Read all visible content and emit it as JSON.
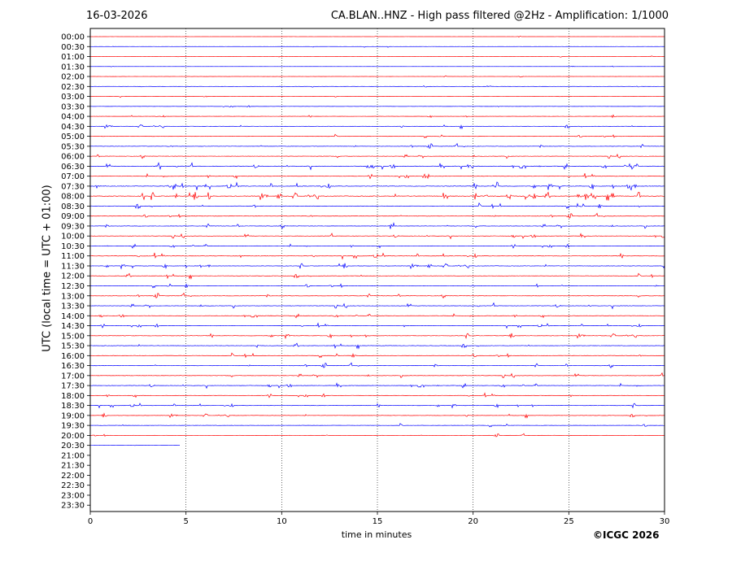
{
  "header": {
    "date": "16-03-2026",
    "title": "CA.BLAN..HNZ - High pass filtered @2Hz - Amplification: 1/1000"
  },
  "footer": {
    "copyright": "©ICGC 2026"
  },
  "chart_data": {
    "type": "line",
    "xlabel": "time in minutes",
    "ylabel": "UTC (local time = UTC + 01:00)",
    "xlim": [
      0,
      30
    ],
    "x_ticks": [
      "0",
      "5",
      "10",
      "15",
      "20",
      "25",
      "30"
    ],
    "grid_x_minutes": [
      5,
      10,
      15,
      20,
      25
    ],
    "row_labels": [
      "00:00",
      "00:30",
      "01:00",
      "01:30",
      "02:00",
      "02:30",
      "03:00",
      "03:30",
      "04:00",
      "04:30",
      "05:00",
      "05:30",
      "06:00",
      "06:30",
      "07:00",
      "07:30",
      "08:00",
      "08:30",
      "09:00",
      "09:30",
      "10:00",
      "10:30",
      "11:00",
      "11:30",
      "12:00",
      "12:30",
      "13:00",
      "13:30",
      "14:00",
      "14:30",
      "15:00",
      "15:30",
      "16:00",
      "16:30",
      "17:00",
      "17:30",
      "18:00",
      "18:30",
      "19:00",
      "19:30",
      "20:00",
      "20:30",
      "21:00",
      "21:30",
      "22:00",
      "22:30",
      "23:00",
      "23:30"
    ],
    "trace_colors": [
      "#ff0000",
      "#0000ff"
    ],
    "last_trace_end_minutes": 4.7,
    "activity_level": [
      0.15,
      0.2,
      0.15,
      0.15,
      0.2,
      0.2,
      0.2,
      0.25,
      0.3,
      0.45,
      0.45,
      0.55,
      0.55,
      0.7,
      0.6,
      0.85,
      0.9,
      0.7,
      0.55,
      0.6,
      0.55,
      0.5,
      0.65,
      0.6,
      0.55,
      0.6,
      0.55,
      0.6,
      0.5,
      0.5,
      0.55,
      0.55,
      0.6,
      0.55,
      0.55,
      0.55,
      0.5,
      0.5,
      0.45,
      0.45,
      0.35,
      0.1
    ]
  }
}
